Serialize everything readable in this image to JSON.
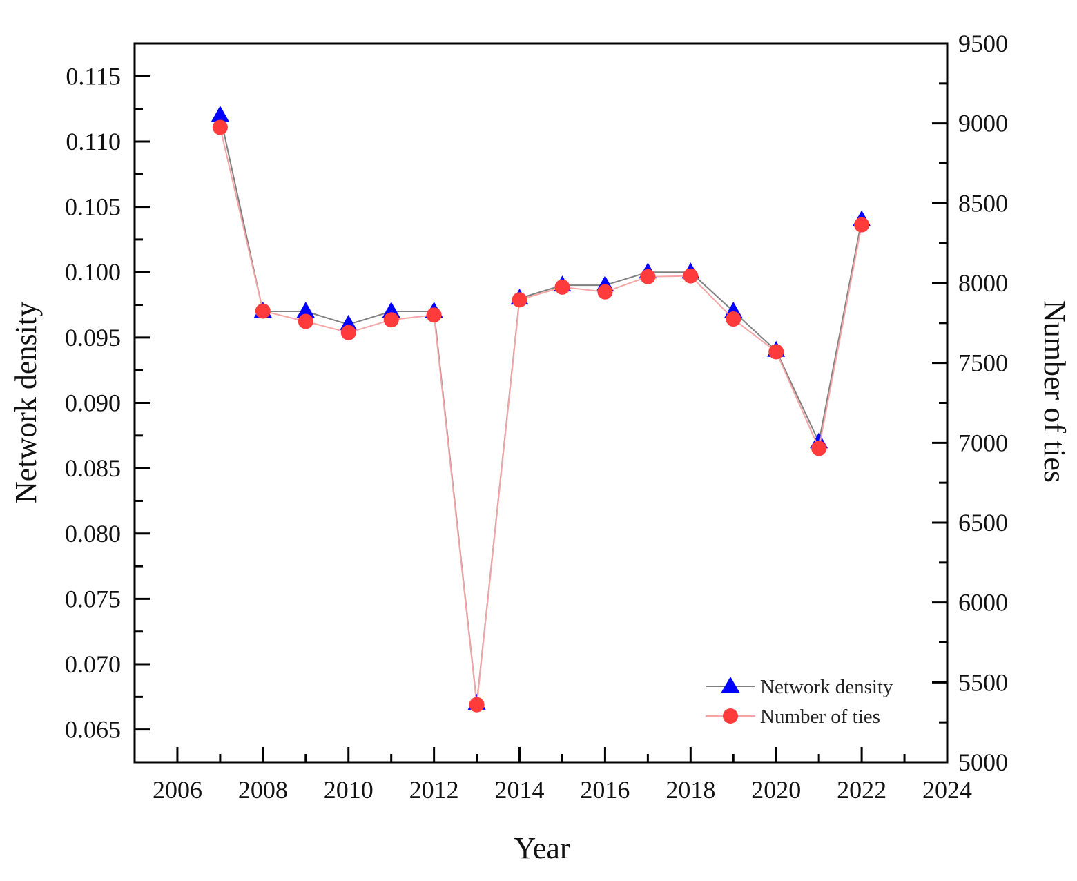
{
  "chart_data": {
    "type": "line",
    "title": "",
    "xlabel": "Year",
    "ylabel": "Network density",
    "y2label": "Number of ties",
    "xlim": [
      2005,
      2024
    ],
    "ylim": [
      0.0625,
      0.1175
    ],
    "y2lim": [
      5000,
      9500
    ],
    "xticks": [
      "2006",
      "2008",
      "2010",
      "2012",
      "2014",
      "2016",
      "2018",
      "2020",
      "2022",
      "2024"
    ],
    "yticks": [
      "0.065",
      "0.070",
      "0.075",
      "0.080",
      "0.085",
      "0.090",
      "0.095",
      "0.100",
      "0.105",
      "0.110",
      "0.115"
    ],
    "y2ticks": [
      "5000",
      "5500",
      "6000",
      "6500",
      "7000",
      "7500",
      "8000",
      "8500",
      "9000",
      "9500"
    ],
    "x": [
      2007,
      2008,
      2009,
      2010,
      2011,
      2012,
      2013,
      2014,
      2015,
      2016,
      2017,
      2018,
      2019,
      2020,
      2021,
      2022
    ],
    "series": [
      {
        "name": "Network density",
        "axis": "left",
        "marker": "triangle",
        "color": "#0000ff",
        "line_color": "#808080",
        "values": [
          0.112,
          0.097,
          0.097,
          0.096,
          0.097,
          0.097,
          0.067,
          0.098,
          0.099,
          0.099,
          0.1,
          0.1,
          0.097,
          0.094,
          0.087,
          0.104
        ]
      },
      {
        "name": "Number of ties",
        "axis": "right",
        "marker": "circle",
        "color": "#ff3b3b",
        "line_color": "#f4a6a6",
        "values": [
          8975,
          7825,
          7760,
          7690,
          7770,
          7800,
          5360,
          7895,
          7975,
          7945,
          8040,
          8045,
          7775,
          7570,
          6965,
          8365
        ]
      }
    ],
    "legend": "bottom-right",
    "grid": false
  }
}
